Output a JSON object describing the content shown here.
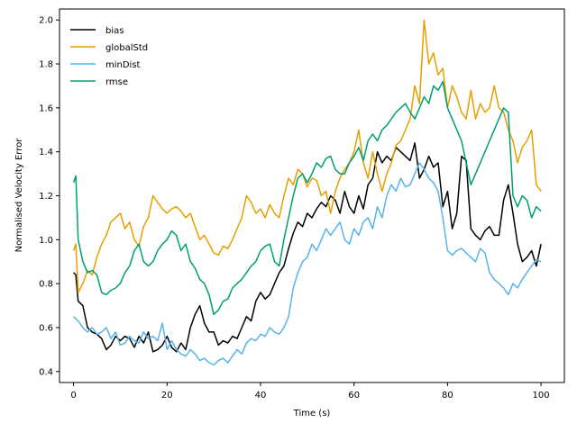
{
  "chart_data": {
    "type": "line",
    "title": "",
    "xlabel": "Time (s)",
    "ylabel": "Normalised Velocity Error",
    "xlim": [
      -3,
      105
    ],
    "ylim": [
      0.35,
      2.05
    ],
    "xticks": [
      0,
      20,
      40,
      60,
      80,
      100
    ],
    "yticks": [
      0.4,
      0.6,
      0.8,
      1.0,
      1.2,
      1.4,
      1.6,
      1.8,
      2.0
    ],
    "xtick_labels": [
      "0",
      "20",
      "40",
      "60",
      "80",
      "100"
    ],
    "ytick_labels": [
      "0.4",
      "0.6",
      "0.8",
      "1.0",
      "1.2",
      "1.4",
      "1.6",
      "1.8",
      "2.0"
    ],
    "grid": false,
    "legend_position": "top-left",
    "series": [
      {
        "name": "bias",
        "color": "#000000",
        "x": [
          0,
          0.5,
          1,
          2,
          3,
          4,
          5,
          6,
          7,
          8,
          9,
          10,
          11,
          12,
          13,
          14,
          15,
          16,
          17,
          18,
          19,
          20,
          21,
          22,
          23,
          24,
          25,
          26,
          27,
          28,
          29,
          30,
          31,
          32,
          33,
          34,
          35,
          36,
          37,
          38,
          39,
          40,
          41,
          42,
          43,
          44,
          45,
          46,
          47,
          48,
          49,
          50,
          51,
          52,
          53,
          54,
          55,
          56,
          57,
          58,
          59,
          60,
          61,
          62,
          63,
          64,
          65,
          66,
          67,
          68,
          69,
          70,
          71,
          72,
          73,
          74,
          75,
          76,
          77,
          78,
          79,
          80,
          81,
          82,
          83,
          84,
          85,
          86,
          87,
          88,
          89,
          90,
          91,
          92,
          93,
          94,
          95,
          96,
          97,
          98,
          99,
          100
        ],
        "y": [
          0.85,
          0.84,
          0.72,
          0.7,
          0.6,
          0.58,
          0.57,
          0.55,
          0.5,
          0.52,
          0.56,
          0.54,
          0.56,
          0.55,
          0.51,
          0.56,
          0.53,
          0.58,
          0.49,
          0.5,
          0.52,
          0.56,
          0.51,
          0.49,
          0.53,
          0.5,
          0.6,
          0.66,
          0.7,
          0.62,
          0.58,
          0.58,
          0.52,
          0.54,
          0.53,
          0.56,
          0.55,
          0.6,
          0.65,
          0.63,
          0.72,
          0.76,
          0.73,
          0.75,
          0.8,
          0.85,
          0.88,
          0.96,
          1.03,
          1.08,
          1.06,
          1.12,
          1.1,
          1.14,
          1.17,
          1.15,
          1.2,
          1.18,
          1.12,
          1.22,
          1.15,
          1.12,
          1.2,
          1.14,
          1.25,
          1.28,
          1.4,
          1.35,
          1.38,
          1.36,
          1.42,
          1.4,
          1.38,
          1.36,
          1.44,
          1.28,
          1.32,
          1.38,
          1.33,
          1.35,
          1.15,
          1.22,
          1.05,
          1.12,
          1.38,
          1.36,
          1.05,
          1.02,
          1.0,
          1.04,
          1.06,
          1.02,
          1.02,
          1.18,
          1.25,
          1.12,
          0.98,
          0.9,
          0.92,
          0.95,
          0.88,
          0.98
        ]
      },
      {
        "name": "globalStd",
        "color": "#E69F00",
        "x": [
          0,
          0.5,
          1,
          2,
          3,
          4,
          5,
          6,
          7,
          8,
          9,
          10,
          11,
          12,
          13,
          14,
          15,
          16,
          17,
          18,
          19,
          20,
          21,
          22,
          23,
          24,
          25,
          26,
          27,
          28,
          29,
          30,
          31,
          32,
          33,
          34,
          35,
          36,
          37,
          38,
          39,
          40,
          41,
          42,
          43,
          44,
          45,
          46,
          47,
          48,
          49,
          50,
          51,
          52,
          53,
          54,
          55,
          56,
          57,
          58,
          59,
          60,
          61,
          62,
          63,
          64,
          65,
          66,
          67,
          68,
          69,
          70,
          71,
          72,
          73,
          74,
          75,
          76,
          77,
          78,
          79,
          80,
          81,
          82,
          83,
          84,
          85,
          86,
          87,
          88,
          89,
          90,
          91,
          92,
          93,
          94,
          95,
          96,
          97,
          98,
          99,
          100
        ],
        "y": [
          0.95,
          0.98,
          0.76,
          0.8,
          0.86,
          0.84,
          0.92,
          0.98,
          1.02,
          1.08,
          1.1,
          1.12,
          1.05,
          1.08,
          1.0,
          0.97,
          1.06,
          1.1,
          1.2,
          1.17,
          1.14,
          1.12,
          1.14,
          1.15,
          1.13,
          1.1,
          1.12,
          1.06,
          1.0,
          1.02,
          0.98,
          0.94,
          0.93,
          0.97,
          0.96,
          1.0,
          1.05,
          1.1,
          1.2,
          1.17,
          1.12,
          1.14,
          1.1,
          1.16,
          1.12,
          1.1,
          1.2,
          1.28,
          1.25,
          1.32,
          1.3,
          1.24,
          1.28,
          1.27,
          1.2,
          1.22,
          1.12,
          1.22,
          1.28,
          1.32,
          1.35,
          1.4,
          1.5,
          1.35,
          1.28,
          1.4,
          1.3,
          1.22,
          1.3,
          1.35,
          1.43,
          1.45,
          1.5,
          1.55,
          1.7,
          1.62,
          2.0,
          1.8,
          1.85,
          1.75,
          1.78,
          1.6,
          1.7,
          1.65,
          1.58,
          1.55,
          1.68,
          1.55,
          1.62,
          1.58,
          1.6,
          1.7,
          1.6,
          1.58,
          1.5,
          1.45,
          1.35,
          1.42,
          1.45,
          1.5,
          1.25,
          1.22
        ]
      },
      {
        "name": "minDist",
        "color": "#56B4E9",
        "x": [
          0,
          0.5,
          1,
          2,
          3,
          4,
          5,
          6,
          7,
          8,
          9,
          10,
          11,
          12,
          13,
          14,
          15,
          16,
          17,
          18,
          19,
          20,
          21,
          22,
          23,
          24,
          25,
          26,
          27,
          28,
          29,
          30,
          31,
          32,
          33,
          34,
          35,
          36,
          37,
          38,
          39,
          40,
          41,
          42,
          43,
          44,
          45,
          46,
          47,
          48,
          49,
          50,
          51,
          52,
          53,
          54,
          55,
          56,
          57,
          58,
          59,
          60,
          61,
          62,
          63,
          64,
          65,
          66,
          67,
          68,
          69,
          70,
          71,
          72,
          73,
          74,
          75,
          76,
          77,
          78,
          79,
          80,
          81,
          82,
          83,
          84,
          85,
          86,
          87,
          88,
          89,
          90,
          91,
          92,
          93,
          94,
          95,
          96,
          97,
          98,
          99,
          100
        ],
        "y": [
          0.65,
          0.64,
          0.63,
          0.6,
          0.58,
          0.6,
          0.57,
          0.58,
          0.6,
          0.55,
          0.58,
          0.52,
          0.53,
          0.56,
          0.54,
          0.53,
          0.58,
          0.55,
          0.56,
          0.54,
          0.62,
          0.5,
          0.54,
          0.5,
          0.48,
          0.47,
          0.5,
          0.48,
          0.45,
          0.46,
          0.44,
          0.43,
          0.45,
          0.46,
          0.44,
          0.47,
          0.5,
          0.48,
          0.53,
          0.55,
          0.54,
          0.57,
          0.56,
          0.6,
          0.58,
          0.57,
          0.6,
          0.65,
          0.78,
          0.85,
          0.9,
          0.92,
          0.98,
          0.95,
          1.0,
          1.05,
          1.02,
          1.05,
          1.08,
          1.0,
          0.98,
          1.05,
          1.02,
          1.08,
          1.1,
          1.05,
          1.15,
          1.1,
          1.2,
          1.25,
          1.22,
          1.28,
          1.24,
          1.25,
          1.3,
          1.35,
          1.32,
          1.28,
          1.26,
          1.22,
          1.1,
          0.95,
          0.93,
          0.95,
          0.96,
          0.94,
          0.92,
          0.9,
          0.96,
          0.94,
          0.85,
          0.82,
          0.8,
          0.78,
          0.75,
          0.8,
          0.78,
          0.82,
          0.85,
          0.88,
          0.91,
          0.9
        ]
      },
      {
        "name": "rmse",
        "color": "#009E73",
        "x": [
          0,
          0.5,
          1,
          2,
          3,
          4,
          5,
          6,
          7,
          8,
          9,
          10,
          11,
          12,
          13,
          14,
          15,
          16,
          17,
          18,
          19,
          20,
          21,
          22,
          23,
          24,
          25,
          26,
          27,
          28,
          29,
          30,
          31,
          32,
          33,
          34,
          35,
          36,
          37,
          38,
          39,
          40,
          41,
          42,
          43,
          44,
          45,
          46,
          47,
          48,
          49,
          50,
          51,
          52,
          53,
          54,
          55,
          56,
          57,
          58,
          59,
          60,
          61,
          62,
          63,
          64,
          65,
          66,
          67,
          68,
          69,
          70,
          71,
          72,
          73,
          74,
          75,
          76,
          77,
          78,
          79,
          80,
          81,
          82,
          83,
          84,
          85,
          86,
          87,
          88,
          89,
          90,
          91,
          92,
          93,
          94,
          95,
          96,
          97,
          98,
          99,
          100
        ],
        "y": [
          1.26,
          1.29,
          1.0,
          0.9,
          0.85,
          0.86,
          0.84,
          0.76,
          0.75,
          0.77,
          0.78,
          0.8,
          0.85,
          0.88,
          0.95,
          0.98,
          0.9,
          0.88,
          0.9,
          0.95,
          0.98,
          1.0,
          1.04,
          1.02,
          0.95,
          0.98,
          0.9,
          0.87,
          0.82,
          0.8,
          0.75,
          0.66,
          0.68,
          0.72,
          0.73,
          0.78,
          0.8,
          0.82,
          0.85,
          0.88,
          0.9,
          0.95,
          0.97,
          0.98,
          0.9,
          0.88,
          1.0,
          1.1,
          1.2,
          1.28,
          1.3,
          1.26,
          1.3,
          1.35,
          1.33,
          1.37,
          1.38,
          1.32,
          1.3,
          1.3,
          1.35,
          1.38,
          1.42,
          1.36,
          1.45,
          1.48,
          1.45,
          1.5,
          1.52,
          1.55,
          1.58,
          1.6,
          1.62,
          1.58,
          1.55,
          1.6,
          1.65,
          1.62,
          1.7,
          1.68,
          1.72,
          1.6,
          1.55,
          1.5,
          1.45,
          1.35,
          1.25,
          1.3,
          1.35,
          1.4,
          1.45,
          1.5,
          1.55,
          1.6,
          1.58,
          1.2,
          1.15,
          1.2,
          1.18,
          1.1,
          1.15,
          1.13
        ]
      }
    ]
  }
}
